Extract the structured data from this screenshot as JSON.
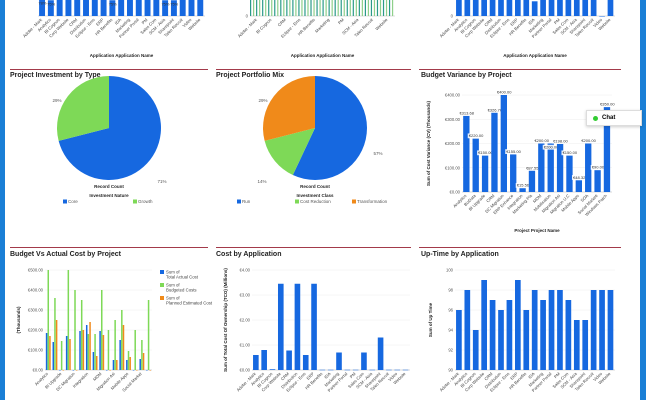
{
  "colors": {
    "blue": "#1668e0",
    "green": "#7ed957",
    "orange": "#f08a1a",
    "frame": "#1a7fd6",
    "rule": "#a33a4a"
  },
  "chat": {
    "label": "Chat",
    "icon": "chat-status-dot-icon"
  },
  "panels": {
    "top1": {
      "xlabel": "Application  Application Name"
    },
    "top2": {
      "xlabel": "Application  Application Name"
    },
    "top3": {
      "xlabel": "Application  Application Name"
    },
    "investment": {
      "title": "Project Investment by Type"
    },
    "portfolio": {
      "title": "Project Portfolio Mix"
    },
    "variance": {
      "title": "Budget Variance by Project"
    },
    "budget_actual": {
      "title": "Budget Vs Actual Cost by Project"
    },
    "cost": {
      "title": "Cost by Application"
    },
    "uptime": {
      "title": "Up-Time by Application"
    }
  },
  "chart_data": [
    {
      "id": "top1",
      "type": "bar",
      "partial": true,
      "xlabel": "Application  Application Name",
      "categories": [
        "Adobe - Mark",
        "Analytics",
        "BI Cognos",
        "Corp Website",
        "CRM",
        "Distribution",
        "Eclipse - Ems",
        "ERP",
        "HR Benefits",
        "IDA",
        "Marketing",
        "Partner Portal",
        "PM",
        "Sales Com",
        "SCM - Asia",
        "Sharepoint",
        "Taleo Recruit",
        "Video",
        "Website"
      ],
      "values": [
        78,
        75,
        100,
        100,
        100,
        100,
        100,
        100,
        75,
        100,
        100,
        100,
        100,
        100,
        75,
        75,
        100,
        100,
        100
      ],
      "data_labels": [
        "78%",
        "75%",
        "",
        "",
        "",
        "",
        "",
        "",
        "75%",
        "",
        "",
        "",
        "",
        "",
        "75%",
        "75%",
        "",
        "",
        ""
      ]
    },
    {
      "id": "top2",
      "type": "bar",
      "partial": true,
      "xlabel": "Application  Application Name",
      "yticks": [
        "0"
      ],
      "categories": [
        "Adobe - Mark",
        "BI Cognos",
        "CRM",
        "Eclipse - Ems",
        "HR Benefits",
        "Marketing",
        "PM",
        "SCM - Asia",
        "Taleo Recruit",
        "Website"
      ]
    },
    {
      "id": "top3",
      "type": "bar",
      "partial": true,
      "xlabel": "Application  Application Name",
      "yticks": [
        "0"
      ],
      "categories": [
        "Adobe - Mark",
        "Analytics",
        "BI Cognos",
        "Corp Website",
        "CRM",
        "Distribution",
        "Eclipse - Ems",
        "ERP",
        "HR Benefits",
        "IDA",
        "Marketing",
        "Partner Portal",
        "PM",
        "Sales Com",
        "SCM - Asia",
        "Sharepoint",
        "Taleo Recruit",
        "Video",
        "Website"
      ],
      "values": [
        100,
        100,
        100,
        100,
        100,
        100,
        100,
        100,
        100,
        70,
        100,
        100,
        100,
        100,
        100,
        100,
        100,
        0,
        100
      ]
    },
    {
      "id": "investment",
      "type": "pie",
      "title": "Project Investment by Type",
      "caption": "Record Count",
      "legend_title": "Investment Nature",
      "slices": [
        {
          "label": "Core",
          "value": 71,
          "text": "71%",
          "color": "#1668e0"
        },
        {
          "label": "Growth",
          "value": 29,
          "text": "29%",
          "color": "#7ed957"
        }
      ]
    },
    {
      "id": "portfolio",
      "type": "pie",
      "title": "Project Portfolio Mix",
      "caption": "Record Count",
      "legend_title": "Investment Class",
      "slices": [
        {
          "label": "Run",
          "value": 57,
          "text": "57%",
          "color": "#1668e0"
        },
        {
          "label": "Cost Reduction",
          "value": 14,
          "text": "14%",
          "color": "#7ed957"
        },
        {
          "label": "Transformation",
          "value": 29,
          "text": "29%",
          "color": "#f08a1a"
        }
      ]
    },
    {
      "id": "variance",
      "type": "bar",
      "title": "Budget Variance by Project",
      "xlabel": "Project  Project  Name",
      "ylabel": "Sum of Cost Variance (CV) (Thousands)",
      "ylim": [
        0,
        400
      ],
      "yticks": [
        "€0.00",
        "€100.00",
        "€200.00",
        "€300.00",
        "€400.00"
      ],
      "categories": [
        "Analytics",
        "BizData",
        "BI Upgrade",
        "CRM",
        "DC Migration",
        "ERP Enhance",
        "Integration",
        "Marketing Pla",
        "MDM",
        "Mobilisation",
        "Migration Asi",
        "Migration U.C",
        "Mobile Apps",
        "SOA",
        "Social Marketi",
        "Windows Patch"
      ],
      "values": [
        313.68,
        220,
        150,
        326.7,
        400,
        155,
        15.56,
        87.55,
        200,
        200,
        198,
        150,
        48.32,
        200,
        90,
        350
      ],
      "data_labels": [
        "€313.68",
        "€220.00",
        "€150.00",
        "€326.70",
        "€400.00",
        "€155.00",
        "€15.56",
        "€87.55",
        "€200.00",
        "€200.00",
        "€198.00",
        "€150.00",
        "€48.32",
        "€200.00",
        "€90.00",
        "€350.00"
      ]
    },
    {
      "id": "budget_actual",
      "type": "bar",
      "title": "Budget Vs Actual Cost by Project",
      "ylabel": "(Thousands)",
      "ylim": [
        0,
        500
      ],
      "yticks": [
        "€0.00",
        "€100.00",
        "€200.00",
        "€300.00",
        "€400.00",
        "€500.00"
      ],
      "legend": "right",
      "categories": [
        "Analytics",
        "BizData",
        "BI Upgrade",
        "CRM",
        "DC Migration",
        "ERP Enhance",
        "Integration",
        "Marketing Pla",
        "MDM",
        "Mobilisation",
        "Migration Asi",
        "Migration U.C",
        "Mobile Apps",
        "SOA",
        "Social Market",
        "Windows Patch"
      ],
      "shown_labels": [
        "Analytics",
        "",
        "BI Upgrade",
        "",
        "DC Migration",
        "",
        "Integration",
        "",
        "MDM",
        "",
        "Migration Asi",
        "",
        "Mobile Apps",
        "",
        "Social Market",
        ""
      ],
      "series": [
        {
          "name": "Sum of Total Actual Cost",
          "color": "#1668e0",
          "values": [
            185,
            140,
            0,
            170,
            0,
            195,
            225,
            90,
            195,
            0,
            50,
            150,
            50,
            0,
            55,
            0
          ]
        },
        {
          "name": "Sum of Budgeted Costs",
          "color": "#7ed957",
          "values": [
            500,
            360,
            145,
            500,
            400,
            350,
            180,
            180,
            400,
            200,
            250,
            300,
            95,
            200,
            150,
            350
          ]
        },
        {
          "name": "Sum of Planned Estimated Cost",
          "color": "#f08a1a",
          "values": [
            170,
            250,
            0,
            155,
            0,
            200,
            240,
            70,
            175,
            0,
            50,
            225,
            65,
            0,
            85,
            0
          ]
        }
      ]
    },
    {
      "id": "cost",
      "type": "bar",
      "title": "Cost by Application",
      "ylabel": "Sum of Total Cost Of Ownership (TCO) (Millions)",
      "ylim": [
        0,
        4
      ],
      "yticks": [
        "€0.00",
        "€1.00",
        "€2.00",
        "€3.00",
        "€4.00"
      ],
      "categories": [
        "Adobe - Mark",
        "Analytics",
        "BI Cognos",
        "Corp Website",
        "CRM",
        "Distribution",
        "Eclipse - Ems",
        "ERP",
        "HR Benefits",
        "IDA",
        "Marketing",
        "Partner Portal",
        "PM",
        "Sales Com",
        "SCM - Asia",
        "Sharepoint",
        "Taleo Recruit",
        "Video",
        "Website"
      ],
      "values": [
        0.6,
        0.8,
        0.03,
        3.45,
        0.78,
        3.45,
        0.6,
        3.45,
        0.01,
        0.01,
        0.7,
        0.01,
        0.01,
        0.7,
        0.01,
        1.3,
        0.01,
        0.01,
        0.01
      ]
    },
    {
      "id": "uptime",
      "type": "bar",
      "title": "Up-Time by Application",
      "ylabel": "Sum of Up Time",
      "ylim": [
        90,
        100
      ],
      "yticks": [
        "90",
        "92",
        "94",
        "96",
        "98",
        "100"
      ],
      "categories": [
        "Adobe - Mark",
        "Analytics",
        "BI Cognos",
        "Corp Website",
        "CRM",
        "Distribution",
        "Eclipse - Ems",
        "ERP",
        "HR Benefits",
        "IDA",
        "Marketing",
        "Partner Portal",
        "PM",
        "Sales Com",
        "SCM - Asia",
        "Sharepoint",
        "Taleo Recruit",
        "Video",
        "Website"
      ],
      "values": [
        96,
        98,
        94,
        99,
        97,
        96,
        97,
        99,
        96,
        98,
        97,
        98,
        98,
        97,
        95,
        95,
        98,
        98,
        98
      ]
    }
  ]
}
